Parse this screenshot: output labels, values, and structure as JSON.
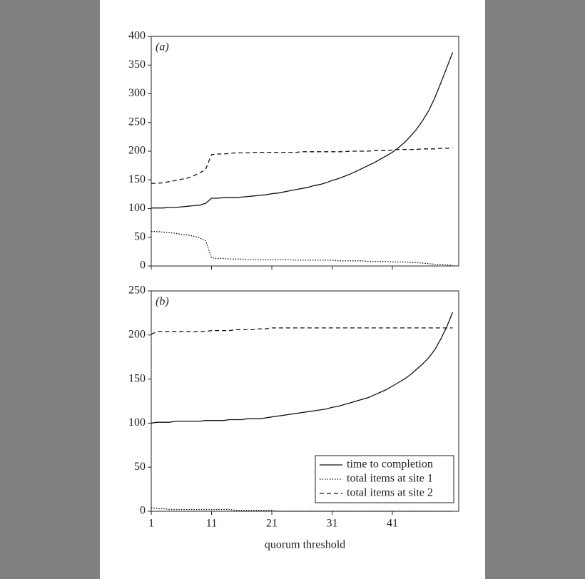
{
  "chart_data": [
    {
      "type": "line",
      "panel_label": "(a)",
      "x": [
        1,
        2,
        3,
        4,
        5,
        6,
        7,
        8,
        9,
        10,
        11,
        12,
        13,
        14,
        15,
        16,
        17,
        18,
        19,
        20,
        21,
        22,
        23,
        24,
        25,
        26,
        27,
        28,
        29,
        30,
        31,
        32,
        33,
        34,
        35,
        36,
        37,
        38,
        39,
        40,
        41,
        42,
        43,
        44,
        45,
        46,
        47,
        48,
        49,
        50,
        51
      ],
      "series": [
        {
          "name": "time to completion",
          "color": "#111",
          "dash": "solid",
          "values": [
            101,
            101,
            101,
            102,
            102,
            103,
            104,
            105,
            106,
            109,
            118,
            118,
            119,
            119,
            119,
            120,
            121,
            122,
            123,
            124,
            126,
            127,
            129,
            131,
            133,
            135,
            137,
            140,
            142,
            145,
            149,
            152,
            156,
            160,
            165,
            170,
            175,
            180,
            186,
            192,
            198,
            206,
            215,
            226,
            238,
            253,
            270,
            292,
            318,
            345,
            372
          ]
        },
        {
          "name": "total items at site 1",
          "color": "#111",
          "dash": "dotted",
          "values": [
            60,
            60,
            59,
            58,
            57,
            55,
            54,
            52,
            49,
            44,
            14,
            13,
            13,
            12,
            12,
            12,
            11,
            11,
            11,
            11,
            11,
            11,
            11,
            11,
            10,
            10,
            10,
            10,
            10,
            10,
            10,
            9,
            9,
            9,
            9,
            9,
            8,
            8,
            8,
            8,
            7,
            7,
            7,
            6,
            6,
            5,
            4,
            3,
            3,
            2,
            1
          ]
        },
        {
          "name": "total items at site 2",
          "color": "#111",
          "dash": "dashed",
          "values": [
            144,
            144,
            145,
            147,
            149,
            151,
            153,
            157,
            162,
            168,
            194,
            195,
            195,
            196,
            197,
            197,
            197,
            198,
            198,
            198,
            198,
            198,
            198,
            198,
            198,
            199,
            199,
            199,
            199,
            199,
            199,
            199,
            199,
            200,
            200,
            200,
            200,
            201,
            201,
            201,
            202,
            203,
            203,
            203,
            203,
            204,
            204,
            204,
            205,
            205,
            206
          ]
        }
      ],
      "xlim": [
        1,
        52
      ],
      "xticks": [
        1,
        11,
        21,
        31,
        41
      ],
      "ylim": [
        0,
        400
      ],
      "yticks": [
        0,
        50,
        100,
        150,
        200,
        250,
        300,
        350,
        400
      ]
    },
    {
      "type": "line",
      "panel_label": "(b)",
      "x_label": "quorum threshold",
      "legend": "lower right",
      "x": [
        1,
        2,
        3,
        4,
        5,
        6,
        7,
        8,
        9,
        10,
        11,
        12,
        13,
        14,
        15,
        16,
        17,
        18,
        19,
        20,
        21,
        22,
        23,
        24,
        25,
        26,
        27,
        28,
        29,
        30,
        31,
        32,
        33,
        34,
        35,
        36,
        37,
        38,
        39,
        40,
        41,
        42,
        43,
        44,
        45,
        46,
        47,
        48,
        49,
        50,
        51
      ],
      "series": [
        {
          "name": "time to completion",
          "color": "#111",
          "dash": "solid",
          "values": [
            100,
            101,
            101,
            101,
            102,
            102,
            102,
            102,
            102,
            103,
            103,
            103,
            103,
            104,
            104,
            104,
            105,
            105,
            105,
            106,
            107,
            108,
            109,
            110,
            111,
            112,
            113,
            114,
            115,
            116,
            118,
            119,
            121,
            123,
            125,
            127,
            129,
            132,
            135,
            138,
            142,
            146,
            150,
            155,
            161,
            167,
            174,
            183,
            195,
            209,
            226
          ]
        },
        {
          "name": "total items at site 1",
          "color": "#111",
          "dash": "dotted",
          "values": [
            4,
            3,
            3,
            2,
            2,
            2,
            2,
            2,
            2,
            2,
            2,
            2,
            2,
            2,
            1,
            1,
            1,
            1,
            1,
            1,
            1,
            0,
            0,
            0,
            0,
            0,
            0,
            0,
            0,
            0,
            0,
            0,
            0,
            0,
            0,
            0,
            0,
            0,
            0,
            0,
            0,
            0,
            0,
            0,
            0,
            0,
            0,
            0,
            0,
            0,
            0
          ]
        },
        {
          "name": "total items at site 2",
          "color": "#111",
          "dash": "dashed",
          "values": [
            201,
            204,
            204,
            204,
            204,
            204,
            204,
            204,
            204,
            204,
            205,
            205,
            205,
            205,
            206,
            206,
            206,
            206,
            207,
            207,
            208,
            208,
            208,
            208,
            208,
            208,
            208,
            208,
            208,
            208,
            208,
            208,
            208,
            208,
            208,
            208,
            208,
            208,
            208,
            208,
            208,
            208,
            208,
            208,
            208,
            208,
            208,
            208,
            208,
            208,
            208
          ]
        }
      ],
      "xlim": [
        1,
        52
      ],
      "xticks": [
        1,
        11,
        21,
        31,
        41
      ],
      "ylim": [
        0,
        250
      ],
      "yticks": [
        0,
        50,
        100,
        150,
        200,
        250
      ]
    }
  ]
}
